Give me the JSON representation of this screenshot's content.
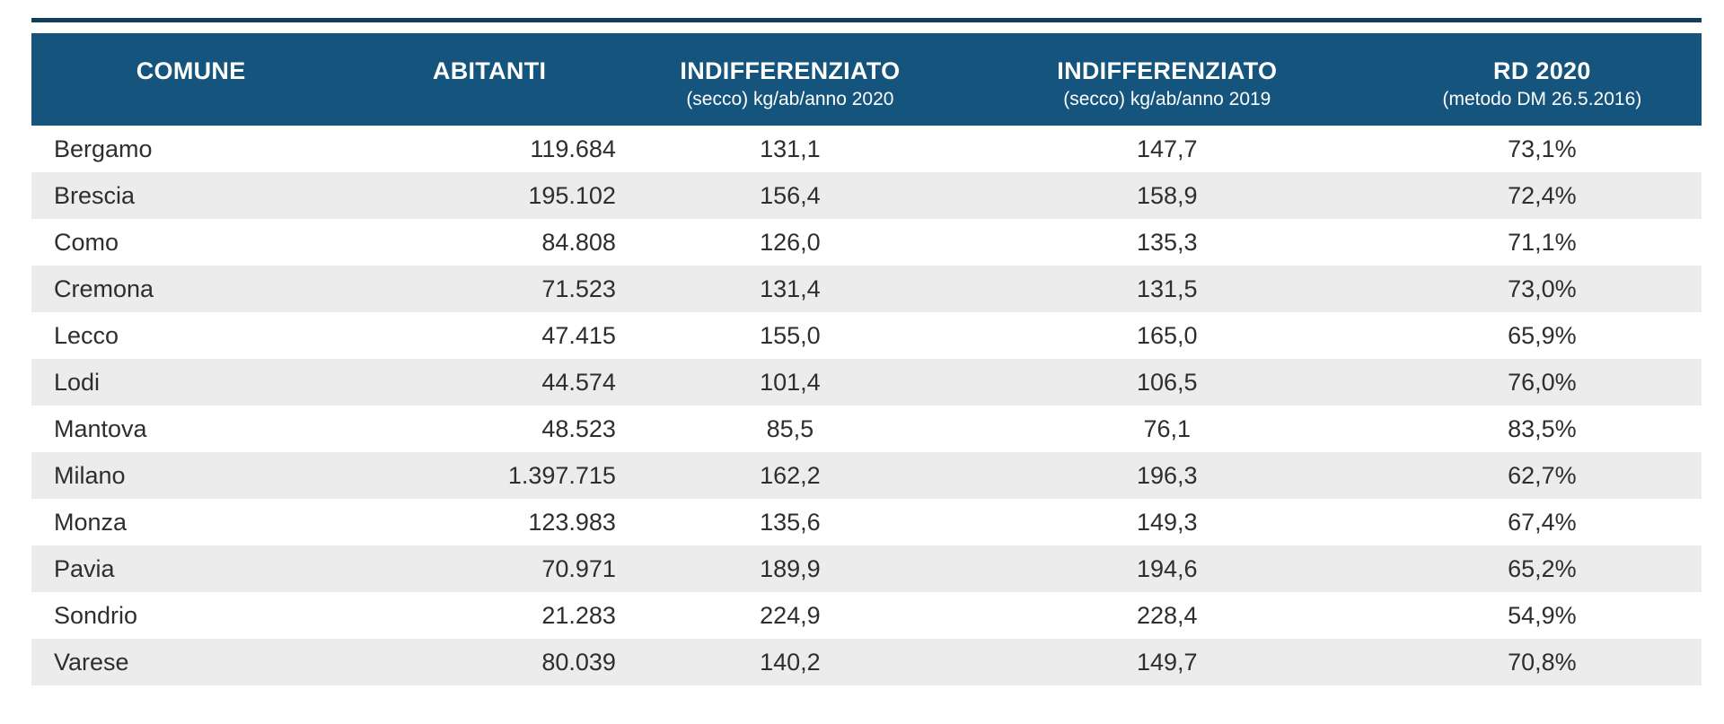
{
  "chart_data": {
    "type": "table",
    "title": "",
    "columns": [
      "COMUNE",
      "ABITANTI",
      "INDIFFERENZIATO (secco) kg/ab/anno 2020",
      "INDIFFERENZIATO (secco) kg/ab/anno 2019",
      "RD 2020 (metodo DM 26.5.2016)"
    ],
    "rows": [
      [
        "Bergamo",
        "119.684",
        "131,1",
        "147,7",
        "73,1%"
      ],
      [
        "Brescia",
        "195.102",
        "156,4",
        "158,9",
        "72,4%"
      ],
      [
        "Como",
        "84.808",
        "126,0",
        "135,3",
        "71,1%"
      ],
      [
        "Cremona",
        "71.523",
        "131,4",
        "131,5",
        "73,0%"
      ],
      [
        "Lecco",
        "47.415",
        "155,0",
        "165,0",
        "65,9%"
      ],
      [
        "Lodi",
        "44.574",
        "101,4",
        "106,5",
        "76,0%"
      ],
      [
        "Mantova",
        "48.523",
        "85,5",
        "76,1",
        "83,5%"
      ],
      [
        "Milano",
        "1.397.715",
        "162,2",
        "196,3",
        "62,7%"
      ],
      [
        "Monza",
        "123.983",
        "135,6",
        "149,3",
        "67,4%"
      ],
      [
        "Pavia",
        "70.971",
        "189,9",
        "194,6",
        "65,2%"
      ],
      [
        "Sondrio",
        "21.283",
        "224,9",
        "228,4",
        "54,9%"
      ],
      [
        "Varese",
        "80.039",
        "140,2",
        "149,7",
        "70,8%"
      ]
    ]
  },
  "header": {
    "columns": [
      {
        "label": "COMUNE",
        "sublabel": ""
      },
      {
        "label": "ABITANTI",
        "sublabel": ""
      },
      {
        "label": "INDIFFERENZIATO",
        "sublabel": "(secco) kg/ab/anno 2020"
      },
      {
        "label": "INDIFFERENZIATO",
        "sublabel": "(secco) kg/ab/anno 2019"
      },
      {
        "label": "RD 2020",
        "sublabel": "(metodo DM 26.5.2016)"
      }
    ]
  },
  "colors": {
    "header_bg": "#15547d",
    "header_text": "#ffffff",
    "top_rule": "#123e5e",
    "row_bg": "#ffffff",
    "row_alt_bg": "#ececec",
    "body_text": "#2e2e2e"
  }
}
